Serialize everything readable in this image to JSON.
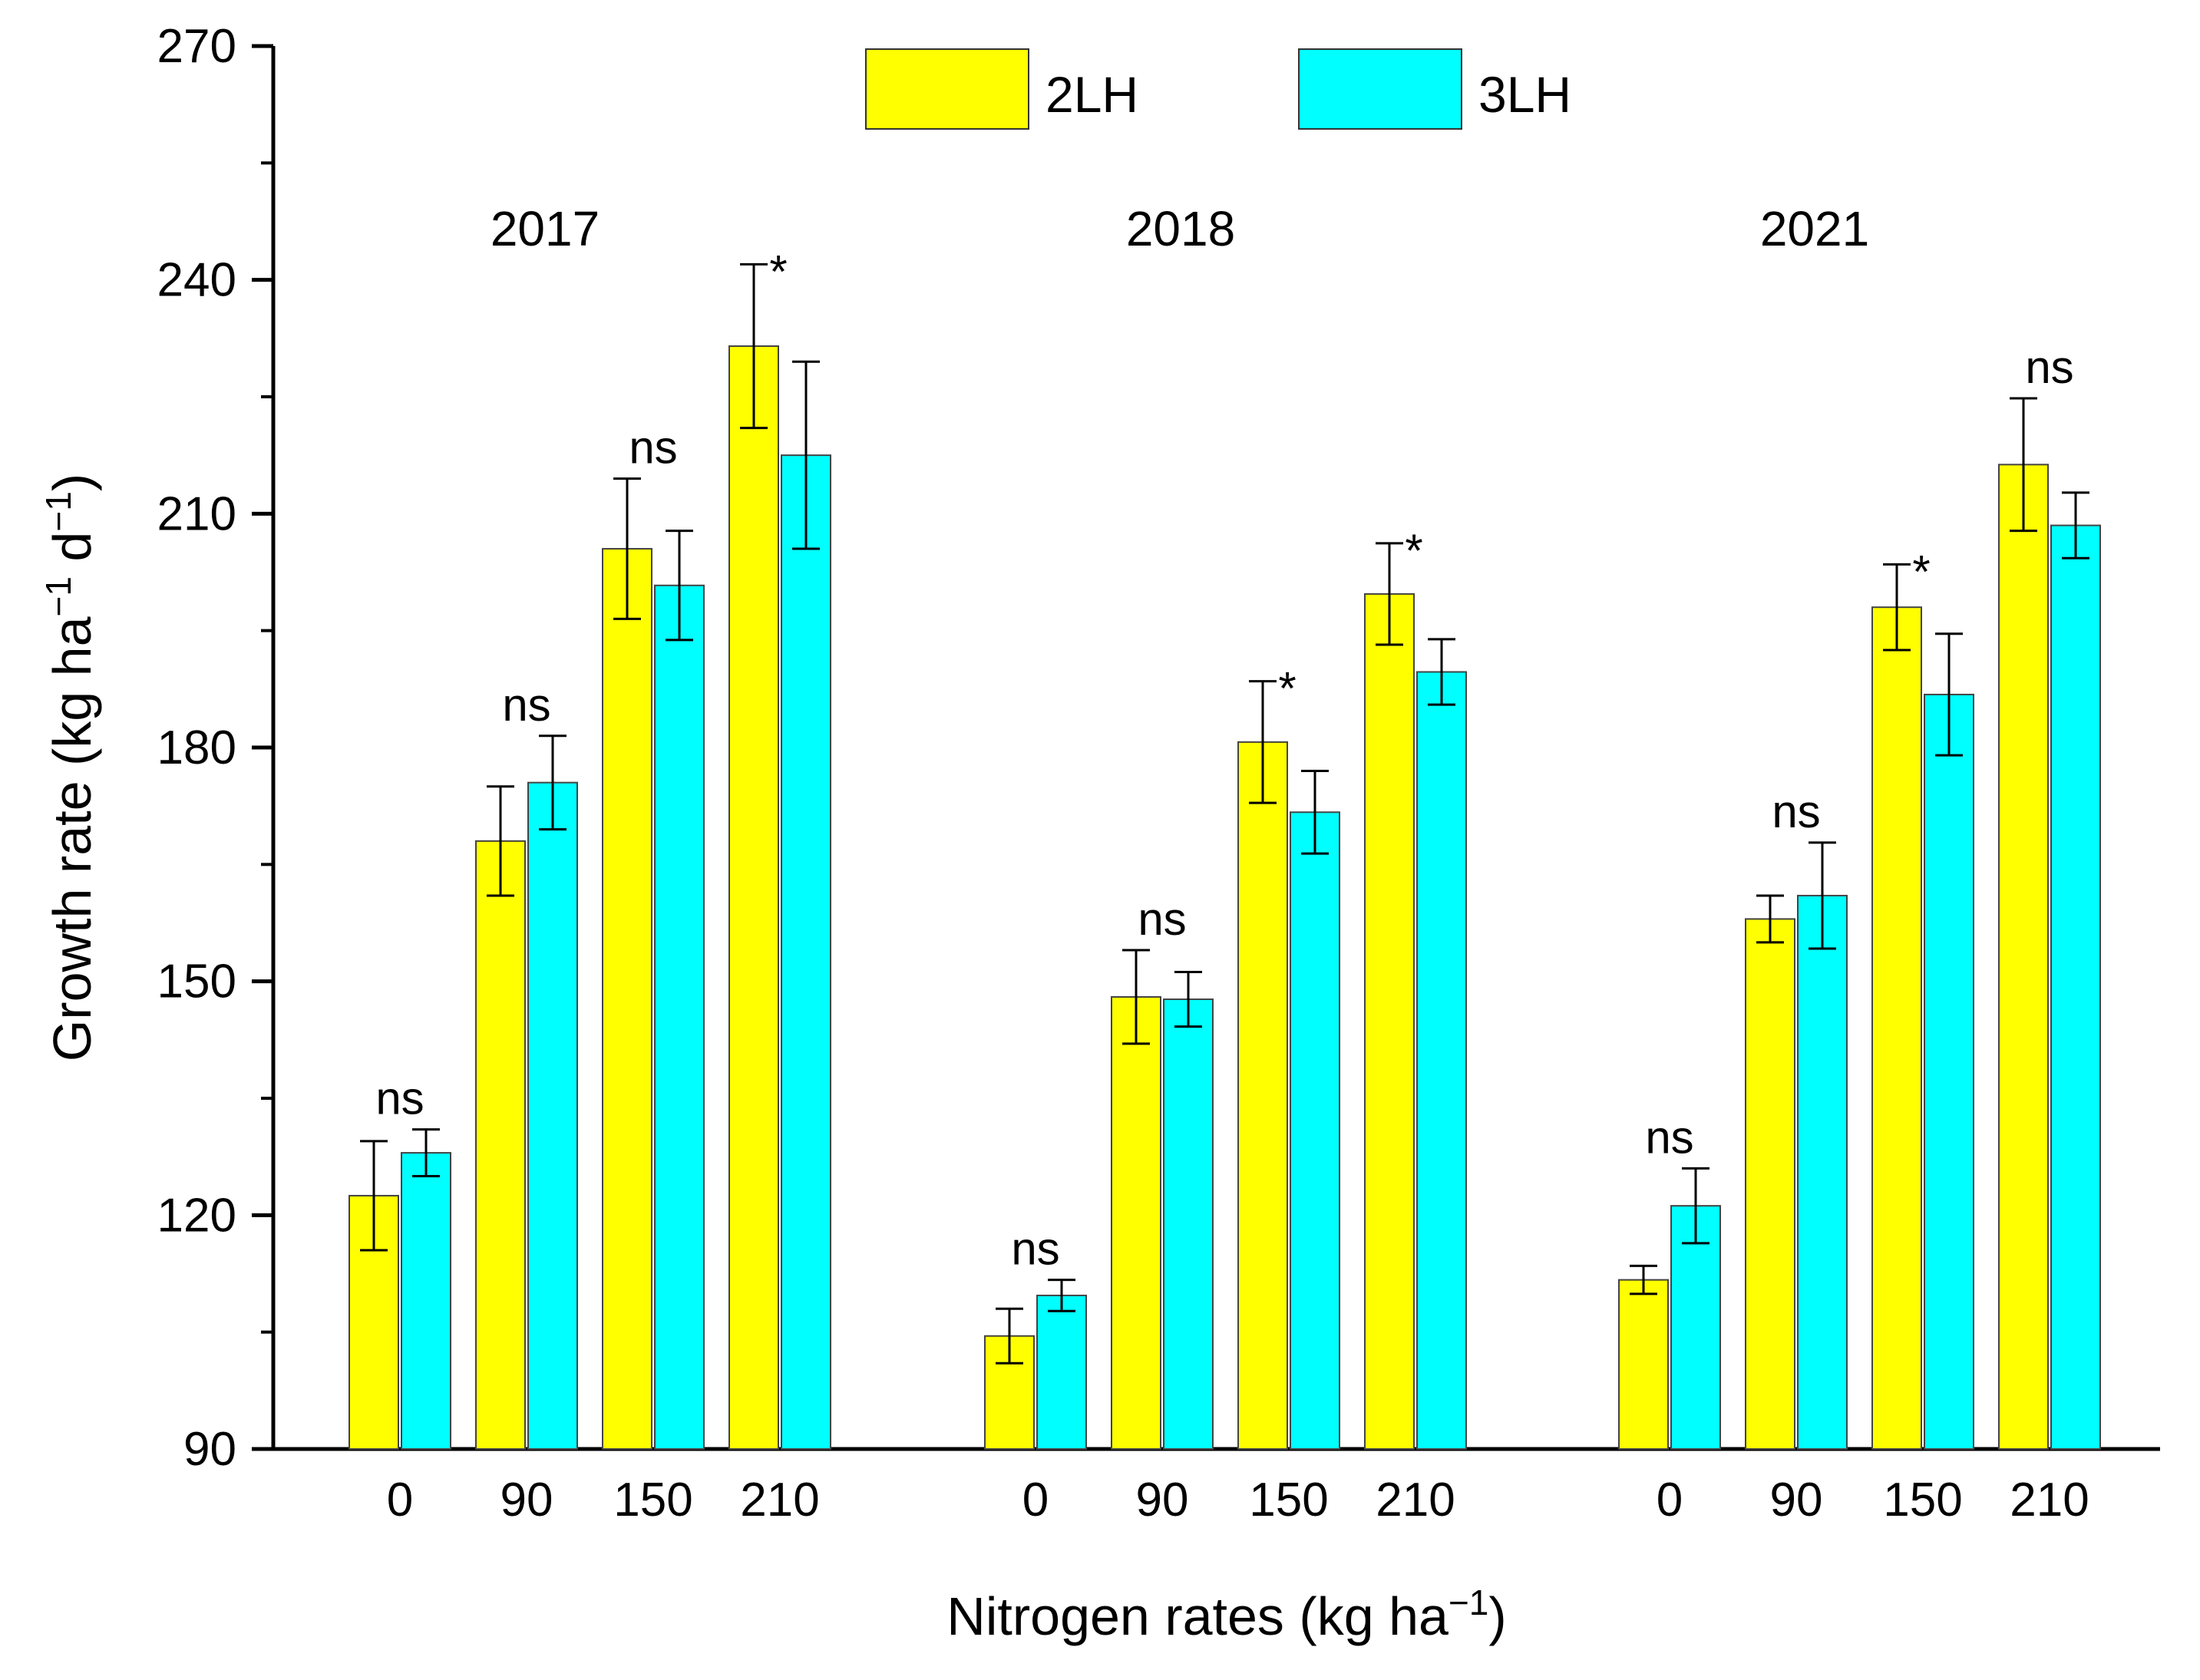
{
  "chart_data": {
    "type": "bar",
    "title": "",
    "xlabel": {
      "text": "Nitrogen rates (kg ha",
      "sup": "−1",
      "close": ")"
    },
    "ylabel": {
      "p1": "Growth rate (kg ha",
      "sup1": "−1",
      "p2": " d",
      "sup2": "−1",
      "close": ")"
    },
    "ylim": [
      90,
      270
    ],
    "yticks": [
      "90",
      "120",
      "150",
      "180",
      "210",
      "240",
      "270"
    ],
    "legend": {
      "position": "top-center",
      "entries": [
        {
          "name": "2LH",
          "color": "#ffff00"
        },
        {
          "name": "3LH",
          "color": "#00ffff"
        }
      ]
    },
    "groups": [
      {
        "year": "2017",
        "categories": [
          "0",
          "90",
          "150",
          "210"
        ],
        "series": [
          {
            "name": "2LH",
            "values": [
              122.5,
              168.0,
              205.5,
              231.5
            ],
            "errors": [
              7.0,
              7.0,
              9.0,
              10.5
            ]
          },
          {
            "name": "3LH",
            "values": [
              128.0,
              175.5,
              200.8,
              217.5
            ],
            "errors": [
              3.0,
              6.0,
              7.0,
              12.0
            ]
          }
        ],
        "significance": [
          "ns",
          "ns",
          "ns",
          "*"
        ]
      },
      {
        "year": "2018",
        "categories": [
          "0",
          "90",
          "150",
          "210"
        ],
        "series": [
          {
            "name": "2LH",
            "values": [
              104.5,
              148.0,
              180.7,
              199.7
            ],
            "errors": [
              3.5,
              6.0,
              7.8,
              6.5
            ]
          },
          {
            "name": "3LH",
            "values": [
              109.7,
              147.7,
              171.7,
              189.7
            ],
            "errors": [
              2.0,
              3.5,
              5.3,
              4.2
            ]
          }
        ],
        "significance": [
          "ns",
          "ns",
          "*",
          "*"
        ]
      },
      {
        "year": "2021",
        "categories": [
          "0",
          "90",
          "150",
          "210"
        ],
        "series": [
          {
            "name": "2LH",
            "values": [
              111.7,
              158.0,
              198.0,
              216.3
            ],
            "errors": [
              1.8,
              3.0,
              5.5,
              8.5
            ]
          },
          {
            "name": "3LH",
            "values": [
              121.2,
              161.0,
              186.8,
              208.5
            ],
            "errors": [
              4.8,
              6.8,
              7.8,
              4.2
            ]
          }
        ],
        "significance": [
          "ns",
          "ns",
          "*",
          "ns"
        ]
      }
    ]
  }
}
